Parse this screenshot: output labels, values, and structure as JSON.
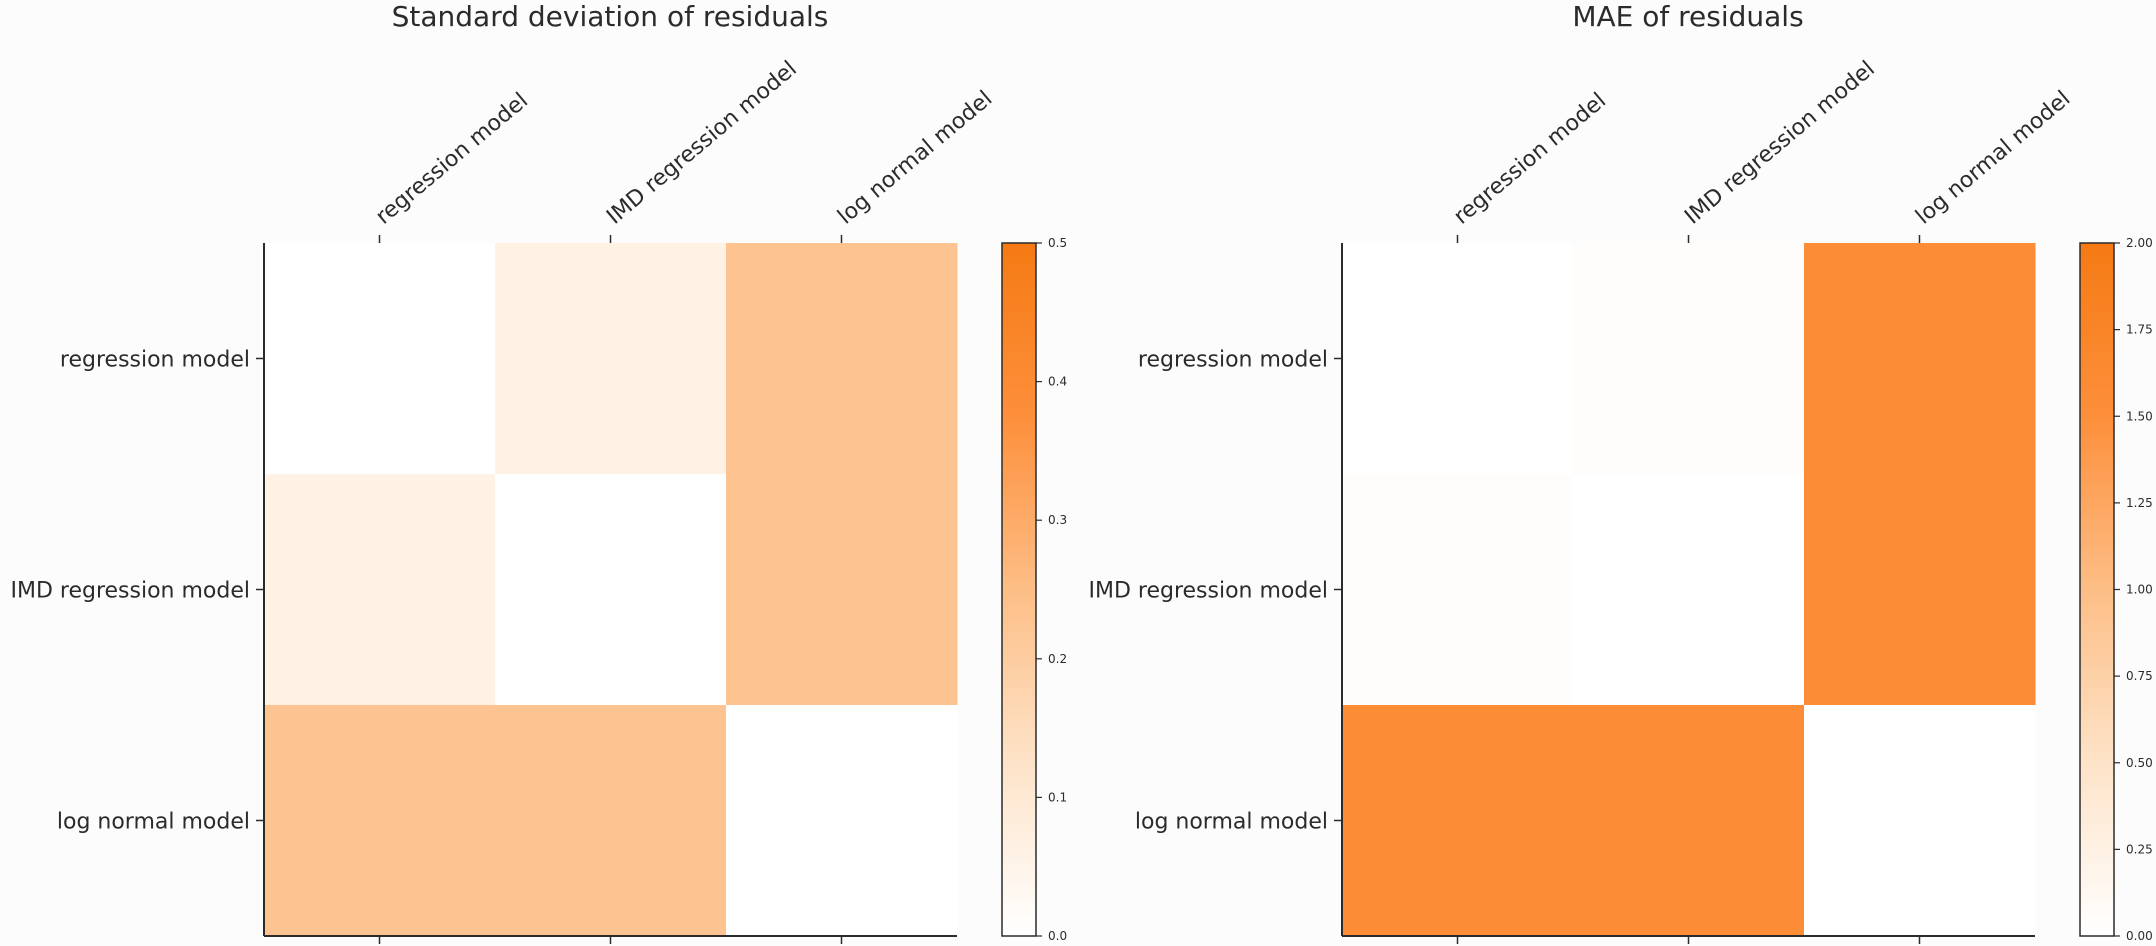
{
  "chart_data": [
    {
      "type": "heatmap",
      "title": "Standard deviation of residuals",
      "x_labels": [
        "regression model",
        "IMD regression model",
        "log normal model"
      ],
      "y_labels": [
        "regression model",
        "IMD regression model",
        "log normal model"
      ],
      "values": [
        [
          0.0,
          0.06,
          0.23
        ],
        [
          0.06,
          0.0,
          0.23
        ],
        [
          0.23,
          0.23,
          0.0
        ]
      ],
      "colorbar": {
        "range": [
          0,
          0.5
        ],
        "ticks": [
          0,
          0.1,
          0.2,
          0.3,
          0.4,
          0.5
        ],
        "tick_labels": [
          "0.0",
          "0.1",
          "0.2",
          "0.3",
          "0.4",
          "0.5"
        ]
      },
      "colormap": [
        "#ffffff",
        "#fde3c8",
        "#fdbe86",
        "#fd8f3b",
        "#f57a14"
      ]
    },
    {
      "type": "heatmap",
      "title": "MAE of residuals",
      "x_labels": [
        "regression model",
        "IMD regression model",
        "log normal model"
      ],
      "y_labels": [
        "regression model",
        "IMD regression model",
        "log normal model"
      ],
      "values": [
        [
          0,
          4,
          157
        ],
        [
          4,
          0,
          157
        ],
        [
          157,
          157,
          0
        ]
      ],
      "colorbar": {
        "range": [
          0,
          200
        ],
        "ticks": [
          0,
          25,
          50,
          75,
          100,
          125,
          150,
          175,
          200
        ],
        "tick_labels": [
          "0.00",
          "0.25",
          "0.50",
          "0.75",
          "1.00",
          "1.25",
          "1.50",
          "1.75",
          "2.00"
        ]
      },
      "colormap": [
        "#ffffff",
        "#fde3c8",
        "#fdbe86",
        "#fd8f3b",
        "#f57a14"
      ]
    }
  ]
}
